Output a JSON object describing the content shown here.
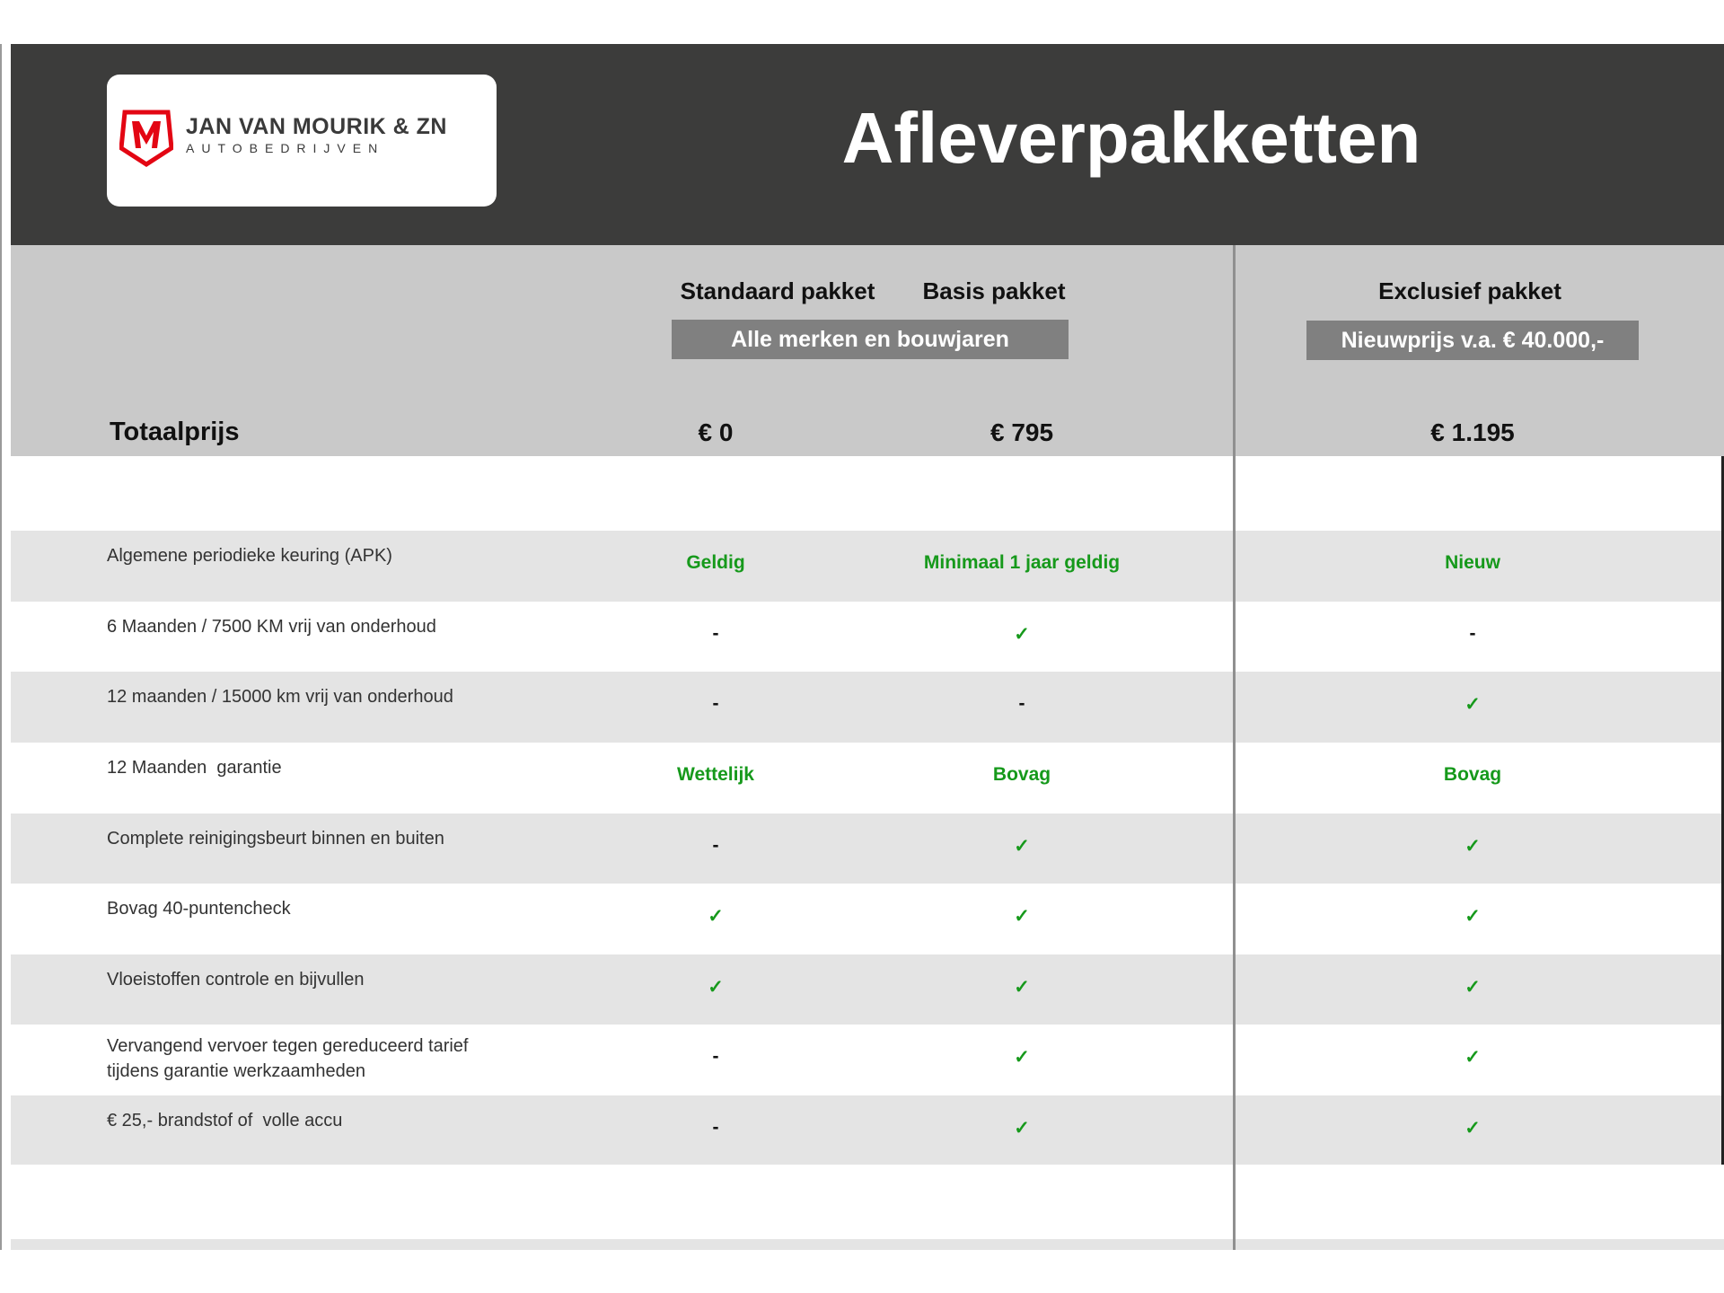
{
  "logo": {
    "name": "JAN VAN MOURIK & ZN",
    "subtitle": "AUTOBEDRIJVEN",
    "brand_color": "#e30613"
  },
  "title": "Afleverpakketten",
  "packages": {
    "standaard": "Standaard pakket",
    "basis": "Basis pakket",
    "exclusief": "Exclusief pakket",
    "shared_note": "Alle merken en bouwjaren",
    "exclusief_note": "Nieuwprijs v.a. € 40.000,-"
  },
  "totals": {
    "label": "Totaalprijs",
    "standaard": "€ 0",
    "basis": "€ 795",
    "exclusief": "€ 1.195"
  },
  "colors": {
    "header": "#3c3c3b",
    "green": "#16991b",
    "row_alt": "#e4e4e4",
    "header_gray": "#c9c9c9"
  },
  "rows": [
    {
      "label": "Algemene periodieke keuring (APK)",
      "standaard": "Geldig",
      "basis": "Minimaal 1 jaar geldig",
      "exclusief": "Nieuw"
    },
    {
      "label": "6 Maanden / 7500 KM vrij van onderhoud",
      "standaard": "-",
      "basis": "✓",
      "exclusief": "-"
    },
    {
      "label": "12 maanden / 15000 km vrij van onderhoud",
      "standaard": "-",
      "basis": "-",
      "exclusief": "✓"
    },
    {
      "label": "12 Maanden  garantie",
      "standaard": "Wettelijk",
      "basis": "Bovag",
      "exclusief": "Bovag"
    },
    {
      "label": "Complete reinigingsbeurt binnen en buiten",
      "standaard": "-",
      "basis": "✓",
      "exclusief": "✓"
    },
    {
      "label": "Bovag 40-puntencheck",
      "standaard": "✓",
      "basis": "✓",
      "exclusief": "✓"
    },
    {
      "label": "Vloeistoffen controle en bijvullen",
      "standaard": "✓",
      "basis": "✓",
      "exclusief": "✓"
    },
    {
      "label": "Vervangend vervoer tegen gereduceerd tarief\ntijdens garantie werkzaamheden",
      "standaard": "-",
      "basis": "✓",
      "exclusief": "✓"
    },
    {
      "label": "€ 25,- brandstof of  volle accu",
      "standaard": "-",
      "basis": "✓",
      "exclusief": "✓"
    }
  ]
}
